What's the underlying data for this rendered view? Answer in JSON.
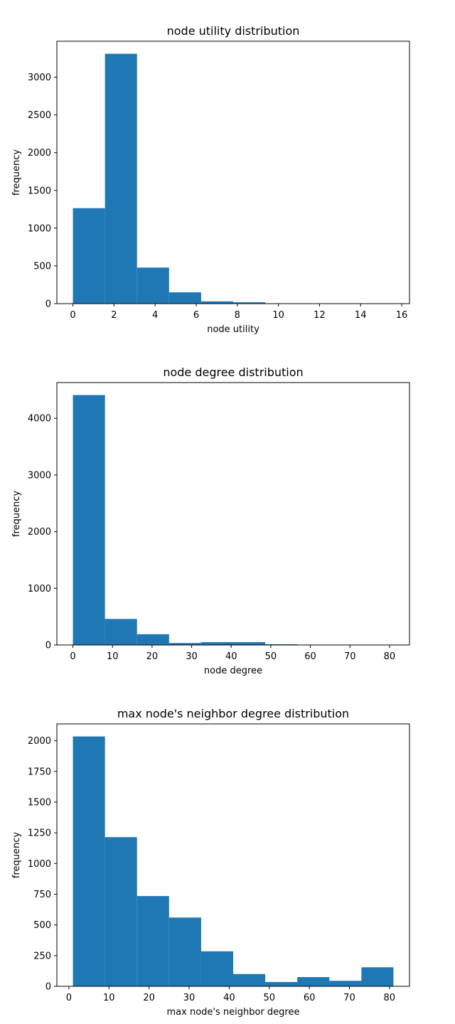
{
  "chart_data": [
    {
      "type": "bar",
      "title": "node utility distribution",
      "xlabel": "node utility",
      "ylabel": "frequency",
      "bin_edges": [
        0,
        1.56,
        3.12,
        4.68,
        6.24,
        7.8,
        9.36,
        10.92,
        12.48,
        14.04,
        15.6
      ],
      "values": [
        1265,
        3310,
        478,
        150,
        30,
        18,
        3,
        2,
        1,
        1
      ],
      "xlim": [
        -0.78,
        16.38
      ],
      "ylim": [
        0,
        3476
      ],
      "xticks": [
        0,
        2,
        4,
        6,
        8,
        10,
        12,
        14,
        16
      ],
      "xtick_labels": [
        "0",
        "2",
        "4",
        "6",
        "8",
        "10",
        "12",
        "14",
        "16"
      ],
      "yticks": [
        0,
        500,
        1000,
        1500,
        2000,
        2500,
        3000
      ],
      "ytick_labels": [
        "0",
        "500",
        "1000",
        "1500",
        "2000",
        "2500",
        "3000"
      ],
      "color": "#1f77b4",
      "grid": false
    },
    {
      "type": "bar",
      "title": "node degree distribution",
      "xlabel": "node degree",
      "ylabel": "frequency",
      "bin_edges": [
        0,
        8.1,
        16.2,
        24.3,
        32.4,
        40.5,
        48.6,
        56.7,
        64.8,
        72.9,
        81
      ],
      "values": [
        4410,
        460,
        190,
        35,
        50,
        50,
        12,
        3,
        2,
        2
      ],
      "xlim": [
        -4.05,
        85.05
      ],
      "ylim": [
        0,
        4630
      ],
      "xticks": [
        0,
        10,
        20,
        30,
        40,
        50,
        60,
        70,
        80
      ],
      "xtick_labels": [
        "0",
        "10",
        "20",
        "30",
        "40",
        "50",
        "60",
        "70",
        "80"
      ],
      "yticks": [
        0,
        1000,
        2000,
        3000,
        4000
      ],
      "ytick_labels": [
        "0",
        "1000",
        "2000",
        "3000",
        "4000"
      ],
      "color": "#1f77b4",
      "grid": false
    },
    {
      "type": "bar",
      "title": "max node's neighbor degree distribution",
      "xlabel": "max node's neighbor degree",
      "ylabel": "frequency",
      "bin_edges": [
        1,
        9,
        17,
        25,
        33,
        41,
        49,
        57,
        65,
        73,
        81
      ],
      "values": [
        2035,
        1215,
        735,
        560,
        285,
        100,
        35,
        75,
        45,
        155
      ],
      "xlim": [
        -3,
        85
      ],
      "ylim": [
        0,
        2137
      ],
      "xticks": [
        0,
        10,
        20,
        30,
        40,
        50,
        60,
        70,
        80
      ],
      "xtick_labels": [
        "0",
        "10",
        "20",
        "30",
        "40",
        "50",
        "60",
        "70",
        "80"
      ],
      "yticks": [
        0,
        250,
        500,
        750,
        1000,
        1250,
        1500,
        1750,
        2000
      ],
      "ytick_labels": [
        "0",
        "250",
        "500",
        "750",
        "1000",
        "1250",
        "1500",
        "1750",
        "2000"
      ],
      "color": "#1f77b4",
      "grid": false
    }
  ]
}
